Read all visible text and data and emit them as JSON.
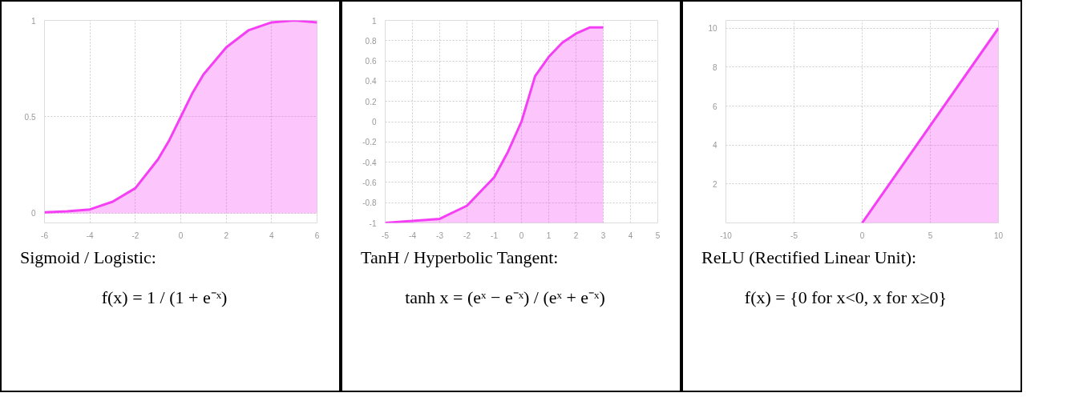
{
  "chart_data": [
    {
      "type": "area",
      "x": [
        -6,
        -5,
        -4,
        -3,
        -2,
        -1,
        -0.5,
        0,
        0.5,
        1,
        2,
        3,
        4,
        5,
        6
      ],
      "series": [
        {
          "color": "#f53ff5",
          "values": [
            0.005,
            0.01,
            0.02,
            0.06,
            0.13,
            0.28,
            0.38,
            0.5,
            0.62,
            0.72,
            0.86,
            0.95,
            0.99,
            1.0,
            0.99
          ]
        }
      ],
      "xlim": [
        -6,
        6
      ],
      "ylim": [
        -0.05,
        1.0
      ],
      "xticks": [
        -6,
        -4,
        -2,
        0,
        2,
        4,
        6
      ],
      "yticks": [
        0,
        0.5,
        1
      ],
      "grid": true,
      "annotations": [
        "Sigmoid / Logistic:",
        "f(x) = 1 / (1 + e⁻ˣ)"
      ]
    },
    {
      "type": "line",
      "x": [
        -5,
        -4,
        -3,
        -2,
        -1,
        -0.5,
        0,
        0.5,
        1,
        1.5,
        2,
        2.5,
        3
      ],
      "series": [
        {
          "color": "#f53ff5",
          "values": [
            -1.0,
            -0.98,
            -0.96,
            -0.83,
            -0.55,
            -0.3,
            0.0,
            0.45,
            0.64,
            0.78,
            0.87,
            0.93,
            0.93
          ],
          "lower": [
            -1,
            -1,
            -1,
            -1,
            -1,
            -1,
            -1,
            -1,
            -1,
            -1,
            -1,
            -1,
            -1
          ],
          "upper": [
            -1.0,
            -0.98,
            -0.96,
            -0.83,
            -0.55,
            -0.3,
            0.0,
            0.45,
            0.64,
            0.78,
            0.87,
            0.93,
            0.93
          ]
        }
      ],
      "xlim": [
        -5,
        5
      ],
      "ylim": [
        -1,
        1
      ],
      "xticks": [
        -5,
        -4,
        -3,
        -2,
        -1,
        0,
        1,
        2,
        3,
        4,
        5
      ],
      "yticks": [
        -1,
        -0.8,
        -0.6,
        -0.4,
        -0.2,
        0,
        0.2,
        0.4,
        0.6,
        0.8,
        1
      ],
      "grid": true,
      "annotations": [
        "TanH / Hyperbolic Tangent:",
        "tanh x = (eˣ − e⁻ˣ) / (eˣ + e⁻ˣ)"
      ]
    },
    {
      "type": "area",
      "x": [
        0,
        10
      ],
      "series": [
        {
          "color": "#f53ff5",
          "values": [
            0,
            10
          ]
        }
      ],
      "xlim": [
        -10,
        10
      ],
      "ylim": [
        0,
        10.4
      ],
      "xticks": [
        -10,
        -5,
        0,
        5,
        10
      ],
      "yticks": [
        2,
        4,
        6,
        8,
        10
      ],
      "grid": true,
      "annotations": [
        "ReLU (Rectified Linear Unit):",
        "f(x) = {0 for x<0, x for x≥0}"
      ]
    }
  ]
}
